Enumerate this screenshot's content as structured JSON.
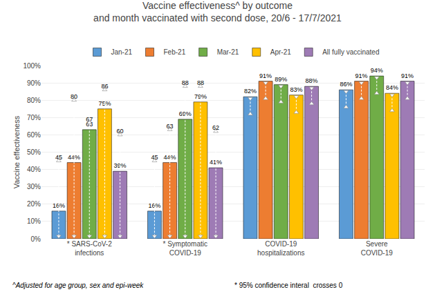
{
  "chart_data": {
    "type": "bar",
    "title": "Vaccine effectiveness^ by outcome\nand month vaccinated with second dose, 20/6 - 17/7/2021",
    "y_label": "Vaccine effectiveness",
    "categories": [
      "* SARS-CoV-2\ninfections",
      "* Symptomatic\nCOVID-19",
      "COVID-19\nhospitalizations",
      "Severe\nCOVID-19"
    ],
    "series": [
      {
        "name": "Jan-21",
        "color": "#5B9BD5",
        "values": [
          16,
          16,
          82,
          86
        ],
        "value_labels": [
          "16%",
          "16%",
          "82%",
          "86%"
        ],
        "ci_low": [
          1.5,
          1.5,
          72,
          76
        ],
        "ci_high": [
          45,
          45,
          81,
          85
        ],
        "ci_labels": [
          "45",
          "45",
          null,
          null
        ]
      },
      {
        "name": "Feb-21",
        "color": "#ED7D31",
        "values": [
          44,
          44,
          91,
          91
        ],
        "value_labels": [
          "44%",
          "44%",
          "91%",
          "91%"
        ],
        "ci_low": [
          1.5,
          1.5,
          81,
          81
        ],
        "ci_high": [
          80,
          63,
          90,
          90
        ],
        "ci_labels": [
          "80",
          "63",
          null,
          null
        ]
      },
      {
        "name": "Mar-21",
        "color": "#70AD47",
        "values": [
          63,
          69,
          89,
          94
        ],
        "value_labels": [
          "63",
          "69%",
          "89%",
          "94%"
        ],
        "ci_low": [
          1.5,
          1.5,
          79,
          84
        ],
        "ci_high": [
          67,
          88,
          88,
          93
        ],
        "ci_labels": [
          "67",
          "88",
          null,
          null
        ]
      },
      {
        "name": "Apr-21",
        "color": "#FFC000",
        "values": [
          75,
          79,
          83,
          84
        ],
        "value_labels": [
          "75%",
          "79%",
          "83%",
          "84%"
        ],
        "ci_low": [
          1.5,
          1.5,
          73,
          74
        ],
        "ci_high": [
          86,
          88,
          82,
          83
        ],
        "ci_labels": [
          "86",
          "88",
          null,
          null
        ]
      },
      {
        "name": "All fully vaccinated",
        "color": "#9E7BB5",
        "values": [
          39,
          41,
          88,
          91
        ],
        "value_labels": [
          "39%",
          "41%",
          "88%",
          "91%"
        ],
        "ci_low": [
          1.5,
          1.5,
          78,
          81
        ],
        "ci_high": [
          60,
          62,
          87,
          90
        ],
        "ci_labels": [
          "60",
          "62",
          null,
          null
        ]
      }
    ],
    "ylim": [
      0,
      100
    ],
    "yticks": [
      {
        "value": 0,
        "label": "0%"
      },
      {
        "value": 10,
        "label": "10%"
      },
      {
        "value": 20,
        "label": "20%"
      },
      {
        "value": 30,
        "label": "30%"
      },
      {
        "value": 40,
        "label": "40%"
      },
      {
        "value": 50,
        "label": "50%"
      },
      {
        "value": 60,
        "label": "60%"
      },
      {
        "value": 70,
        "label": "70%"
      },
      {
        "value": 80,
        "label": "80%"
      },
      {
        "value": 90,
        "label": "90%"
      },
      {
        "value": 100,
        "label": "100%"
      }
    ],
    "grid": true,
    "legend": "top",
    "data_labels": true,
    "annotations": [
      "^Adjusted for age group, sex and epi-week",
      "* 95% confidence interal  crosses 0"
    ]
  }
}
